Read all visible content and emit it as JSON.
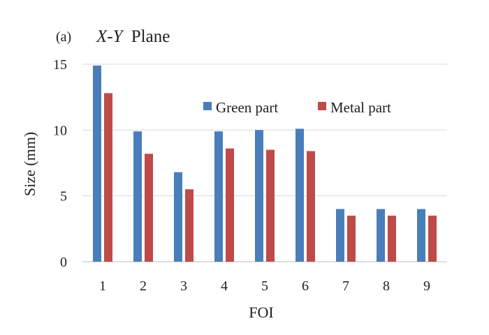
{
  "chart_data": {
    "type": "bar",
    "panel_label": "(a)",
    "title_italic": "X-Y",
    "title_rest": "Plane",
    "xlabel": "FOI",
    "ylabel": "Size (mm)",
    "categories": [
      "1",
      "2",
      "3",
      "4",
      "5",
      "6",
      "7",
      "8",
      "9"
    ],
    "series": [
      {
        "name": "Green part",
        "color": "#4a7ebb",
        "values": [
          14.9,
          9.9,
          6.8,
          9.9,
          10.0,
          10.1,
          4.0,
          4.0,
          4.0
        ]
      },
      {
        "name": "Metal part",
        "color": "#be4b48",
        "values": [
          12.8,
          8.2,
          5.5,
          8.6,
          8.5,
          8.4,
          3.5,
          3.5,
          3.5
        ]
      }
    ],
    "ylim": [
      0,
      15
    ],
    "yticks": [
      "0",
      "5",
      "10",
      "15"
    ],
    "ytick_values": [
      0,
      5,
      10,
      15
    ],
    "grid": true,
    "legend_position": "top-right"
  }
}
